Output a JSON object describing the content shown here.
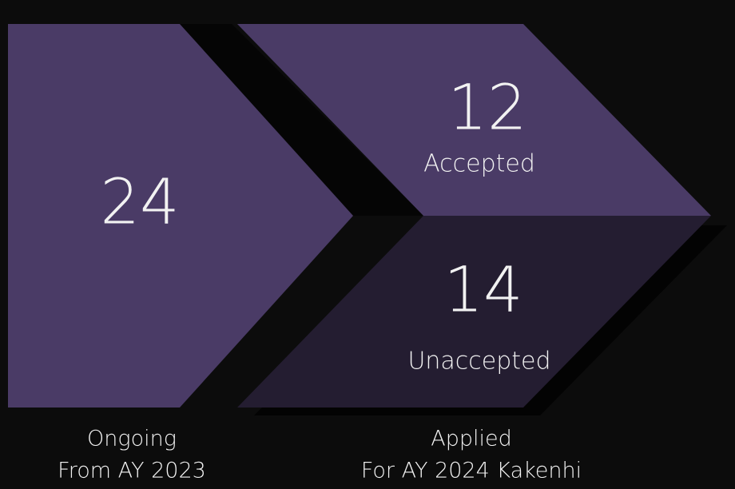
{
  "ongoing": {
    "count": 24,
    "caption": [
      "Ongoing",
      "From AY 2023"
    ]
  },
  "applied": {
    "accepted": {
      "count": 12,
      "label": "Accepted"
    },
    "unaccepted": {
      "count": 14,
      "label": "Unaccepted"
    },
    "caption": [
      "Applied",
      "For AY 2024 Kakenhi"
    ]
  }
}
